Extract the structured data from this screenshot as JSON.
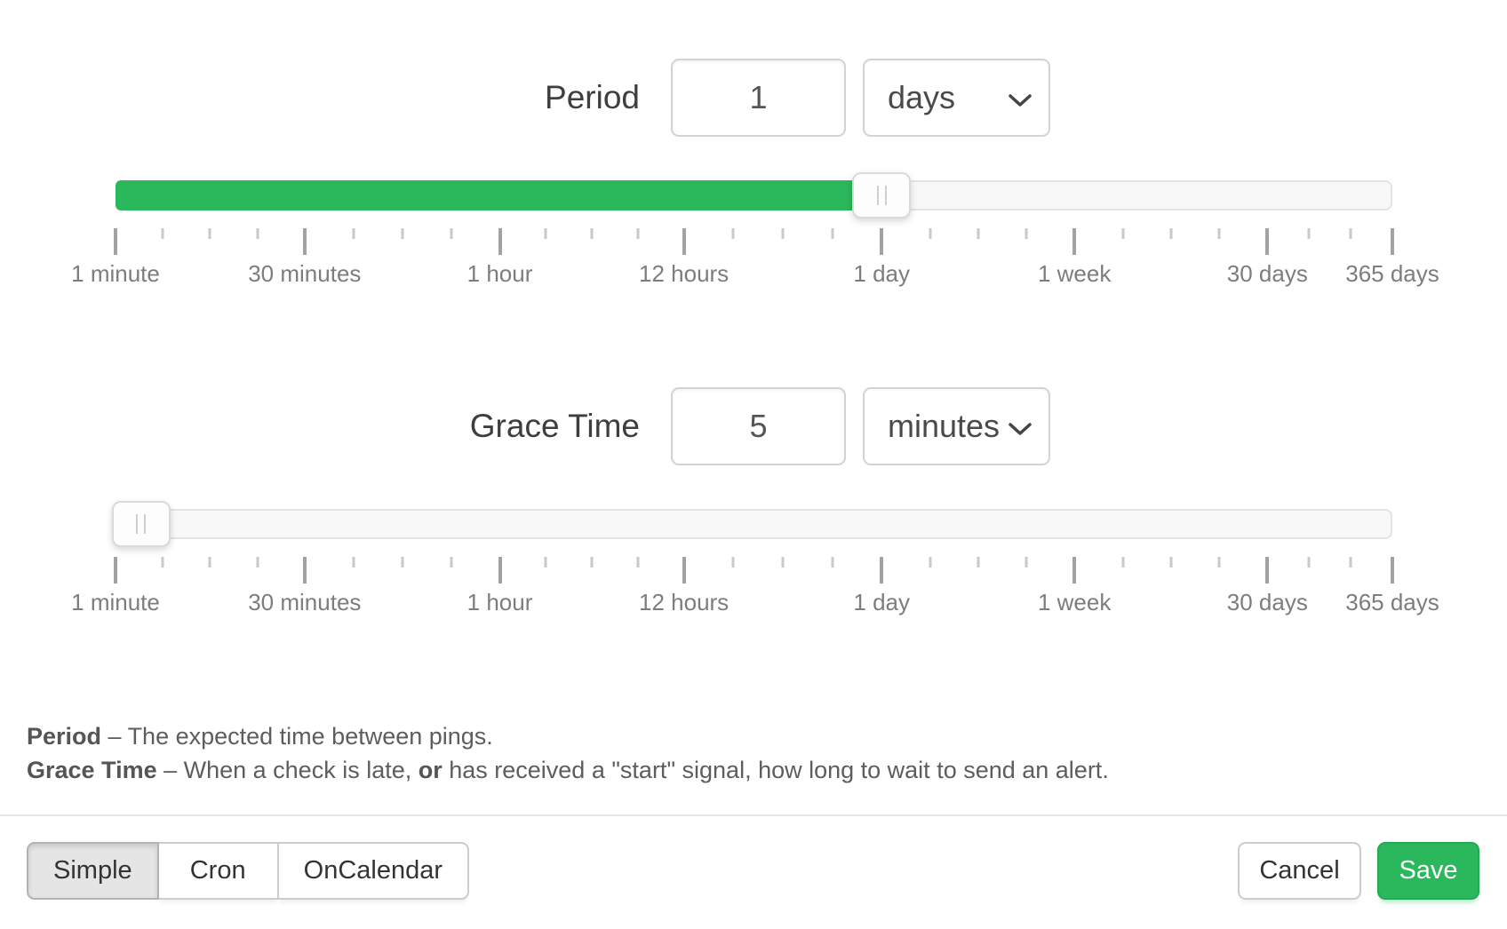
{
  "accent": {
    "green": "#2bb85c"
  },
  "period": {
    "label": "Period",
    "value": "1",
    "unit": "days",
    "slider_percent": 60
  },
  "grace": {
    "label": "Grace Time",
    "value": "5",
    "unit": "minutes",
    "slider_percent": 2
  },
  "scale": {
    "ticks": [
      {
        "p": 0,
        "t": "major",
        "label": "1 minute"
      },
      {
        "p": 3.7,
        "t": "minor"
      },
      {
        "p": 7.41,
        "t": "minor"
      },
      {
        "p": 11.11,
        "t": "minor"
      },
      {
        "p": 14.81,
        "t": "major",
        "label": "30 minutes"
      },
      {
        "p": 18.63,
        "t": "minor"
      },
      {
        "p": 22.46,
        "t": "minor"
      },
      {
        "p": 26.28,
        "t": "minor"
      },
      {
        "p": 30.1,
        "t": "major",
        "label": "1 hour"
      },
      {
        "p": 33.7,
        "t": "minor"
      },
      {
        "p": 37.31,
        "t": "minor"
      },
      {
        "p": 40.91,
        "t": "minor"
      },
      {
        "p": 44.51,
        "t": "major",
        "label": "12 hours"
      },
      {
        "p": 48.38,
        "t": "minor"
      },
      {
        "p": 52.25,
        "t": "minor"
      },
      {
        "p": 56.13,
        "t": "minor"
      },
      {
        "p": 60.0,
        "t": "major",
        "label": "1 day"
      },
      {
        "p": 63.78,
        "t": "minor"
      },
      {
        "p": 67.55,
        "t": "minor"
      },
      {
        "p": 71.33,
        "t": "minor"
      },
      {
        "p": 75.1,
        "t": "major",
        "label": "1 week"
      },
      {
        "p": 78.88,
        "t": "minor"
      },
      {
        "p": 82.65,
        "t": "minor"
      },
      {
        "p": 86.43,
        "t": "minor"
      },
      {
        "p": 90.21,
        "t": "major",
        "label": "30 days"
      },
      {
        "p": 93.47,
        "t": "minor"
      },
      {
        "p": 96.73,
        "t": "minor"
      },
      {
        "p": 100,
        "t": "major",
        "label": "365 days"
      }
    ]
  },
  "description": {
    "line1_bold": "Period",
    "line1_text": " – The expected time between pings.",
    "line2_bold": "Grace Time",
    "line2_text_a": " – When a check is late, ",
    "line2_bold2": "or",
    "line2_text_b": " has received a \"start\" signal, how long to wait to send an alert."
  },
  "footer": {
    "modes": [
      {
        "label": "Simple",
        "active": true
      },
      {
        "label": "Cron",
        "active": false
      },
      {
        "label": "OnCalendar",
        "active": false
      }
    ],
    "cancel_label": "Cancel",
    "save_label": "Save"
  }
}
